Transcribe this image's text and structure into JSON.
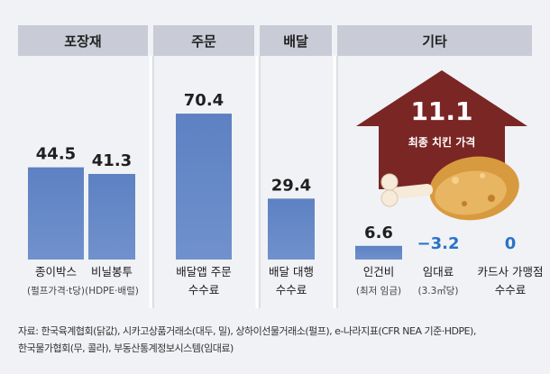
{
  "chart_data": {
    "type": "bar",
    "unit_note": "",
    "groups": [
      {
        "header": "포장재",
        "items": [
          {
            "value": "44.5",
            "v": 44.5,
            "label1": "종이박스",
            "label2": "(펄프가격·t당)"
          },
          {
            "value": "41.3",
            "v": 41.3,
            "label1": "비닐봉투",
            "label2": "(HDPE·배럴)"
          }
        ]
      },
      {
        "header": "주문",
        "items": [
          {
            "value": "70.4",
            "v": 70.4,
            "label1": "배달앱 주문",
            "label2": "수수료"
          }
        ]
      },
      {
        "header": "배달",
        "items": [
          {
            "value": "29.4",
            "v": 29.4,
            "label1": "배달 대행",
            "label2": "수수료"
          }
        ]
      },
      {
        "header": "기타",
        "items": [
          {
            "value": "6.6",
            "v": 6.6,
            "label1": "인건비",
            "label2": "(최저 임금)"
          },
          {
            "value": "−3.2",
            "v": -3.2,
            "label1": "임대료",
            "label2": "(3.3㎡당)"
          },
          {
            "value": "0",
            "v": 0,
            "label1": "카드사 가맹점",
            "label2": "수수료"
          }
        ]
      }
    ],
    "highlight": {
      "value": "11.1",
      "label": "최종 치킨 가격"
    },
    "colors": {
      "header_bg": "#c9ccd6",
      "bar": "#5b7fbf",
      "negative": "#2a72c9",
      "arrow": "#7a2624"
    }
  },
  "source": {
    "line1": "자료: 한국육계협회(닭값), 시카고상품거래소(대두, 밀), 상하이선물거래소(펄프), e-나라지표(CFR NEA 기준·HDPE),",
    "line2": "한국물가협회(무, 콜라), 부동산통계정보시스템(임대료)"
  }
}
